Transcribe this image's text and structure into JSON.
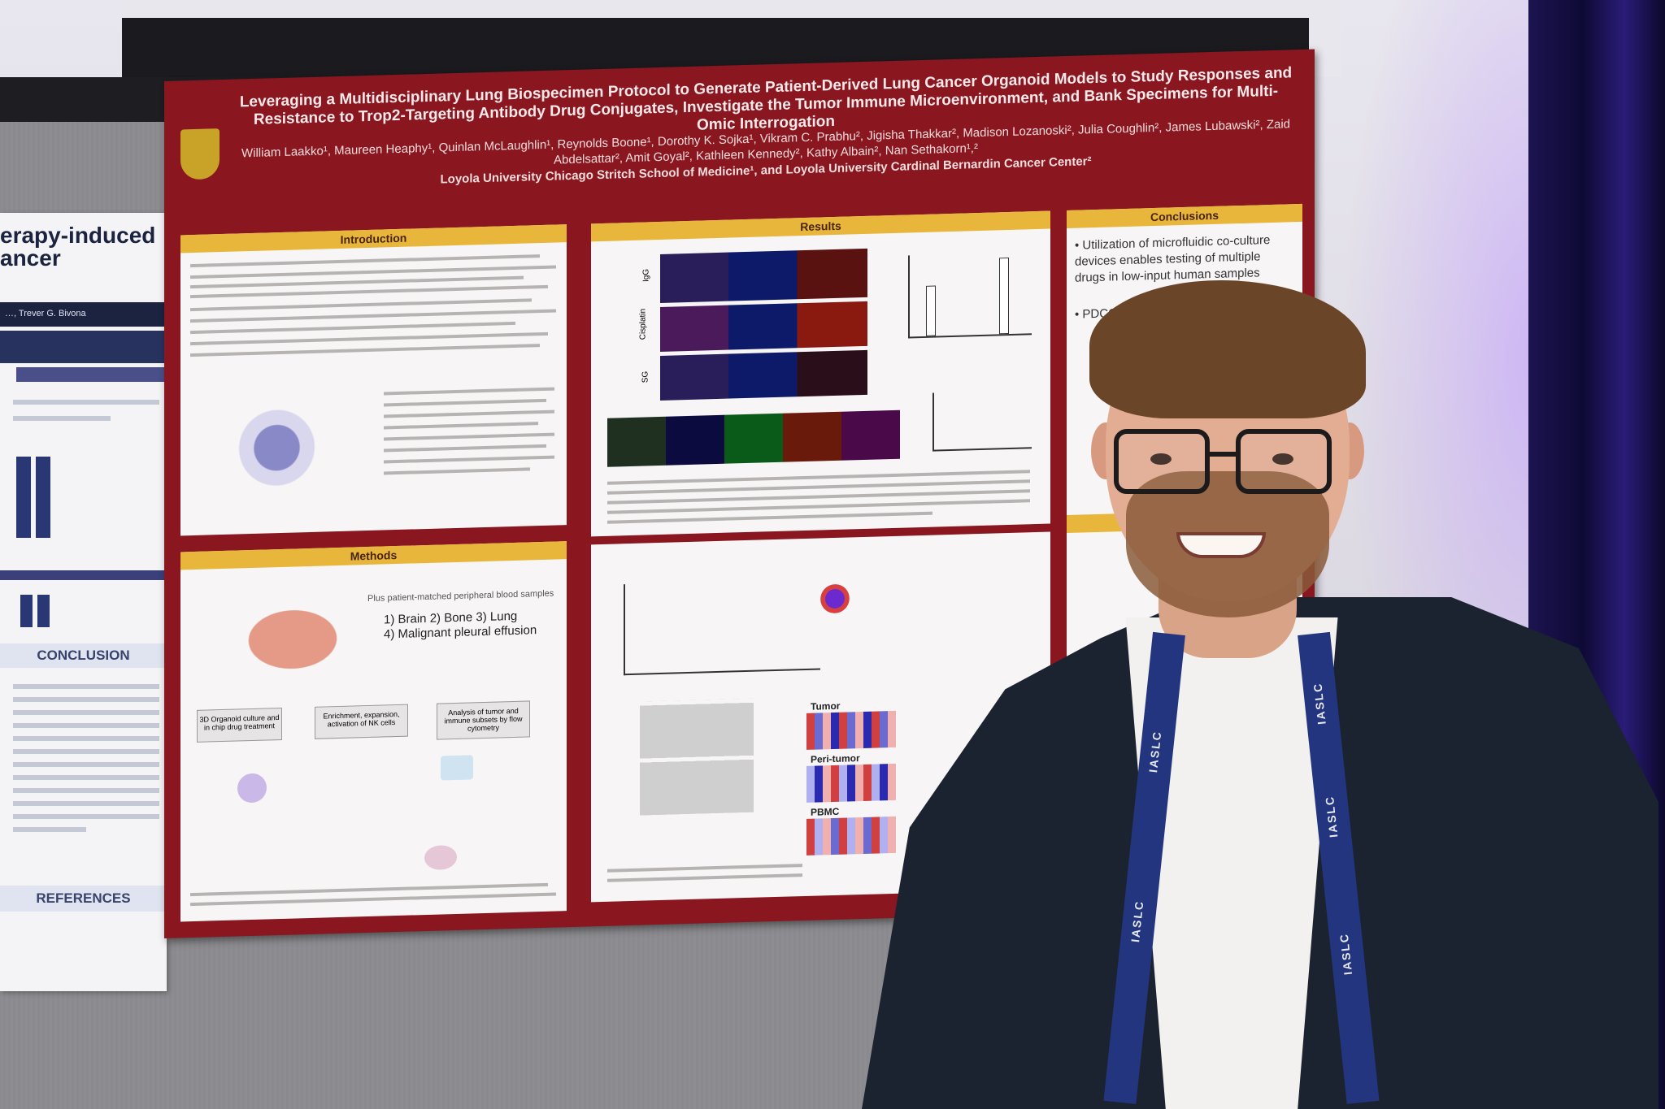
{
  "scene": {
    "description_colors": {
      "poster_red": "#8a1620",
      "header_gold": "#e7b63a",
      "lanyard_blue": "#24357f",
      "curtain": "#1c1450"
    }
  },
  "main_poster": {
    "title": "Leveraging a Multidisciplinary Lung Biospecimen Protocol to Generate Patient-Derived Lung Cancer Organoid Models to Study Responses and Resistance to Trop2-Targeting Antibody Drug Conjugates, Investigate the Tumor Immune Microenvironment, and Bank Specimens for Multi-Omic Interrogation",
    "authors": "William Laakko¹, Maureen Heaphy¹, Quinlan McLaughlin¹, Reynolds Boone¹, Dorothy K. Sojka¹, Vikram C. Prabhu², Jigisha Thakkar², Madison Lozanoski², Julia Coughlin², James Lubawski², Zaid Abdelsattar², Amit Goyal², Kathleen Kennedy², Kathy Albain², Nan Sethakorn¹,²",
    "affiliation": "Loyola University Chicago Stritch School of Medicine¹, and Loyola University Cardinal Bernardin Cancer Center²",
    "sections": {
      "introduction": "Introduction",
      "methods": "Methods",
      "results": "Results",
      "conclusions": "Conclusions"
    },
    "conclusions_text": {
      "bullet1": "Utilization of microfluidic co-culture devices enables testing of multiple drugs in low-input human samples",
      "bullet2": "PDCO"
    },
    "methods_text": {
      "samples": "Plus patient-matched peripheral blood samples",
      "sites_1": "1) Brain 2) Bone 3) Lung",
      "sites_2": "4) Malignant pleural effusion",
      "step1": "3D Organoid culture and in chip drug treatment",
      "step2": "Enrichment, expansion, activation of NK cells",
      "step3": "Analysis of tumor and immune subsets by flow cytometry"
    },
    "results_text": {
      "row_igg": "IgG",
      "row_cis": "Cisplatin",
      "row_sg": "SG",
      "heat_tumor": "Tumor",
      "heat_peri": "Peri-tumor",
      "heat_pbmc": "PBMC"
    }
  },
  "side_poster": {
    "title_line1": "erapy-induced",
    "title_line2": "ancer",
    "authors": "…, Trever G. Bivona",
    "conclusion": "CONCLUSION",
    "references": "REFERENCES"
  },
  "lanyard": {
    "text": "IASLC"
  }
}
